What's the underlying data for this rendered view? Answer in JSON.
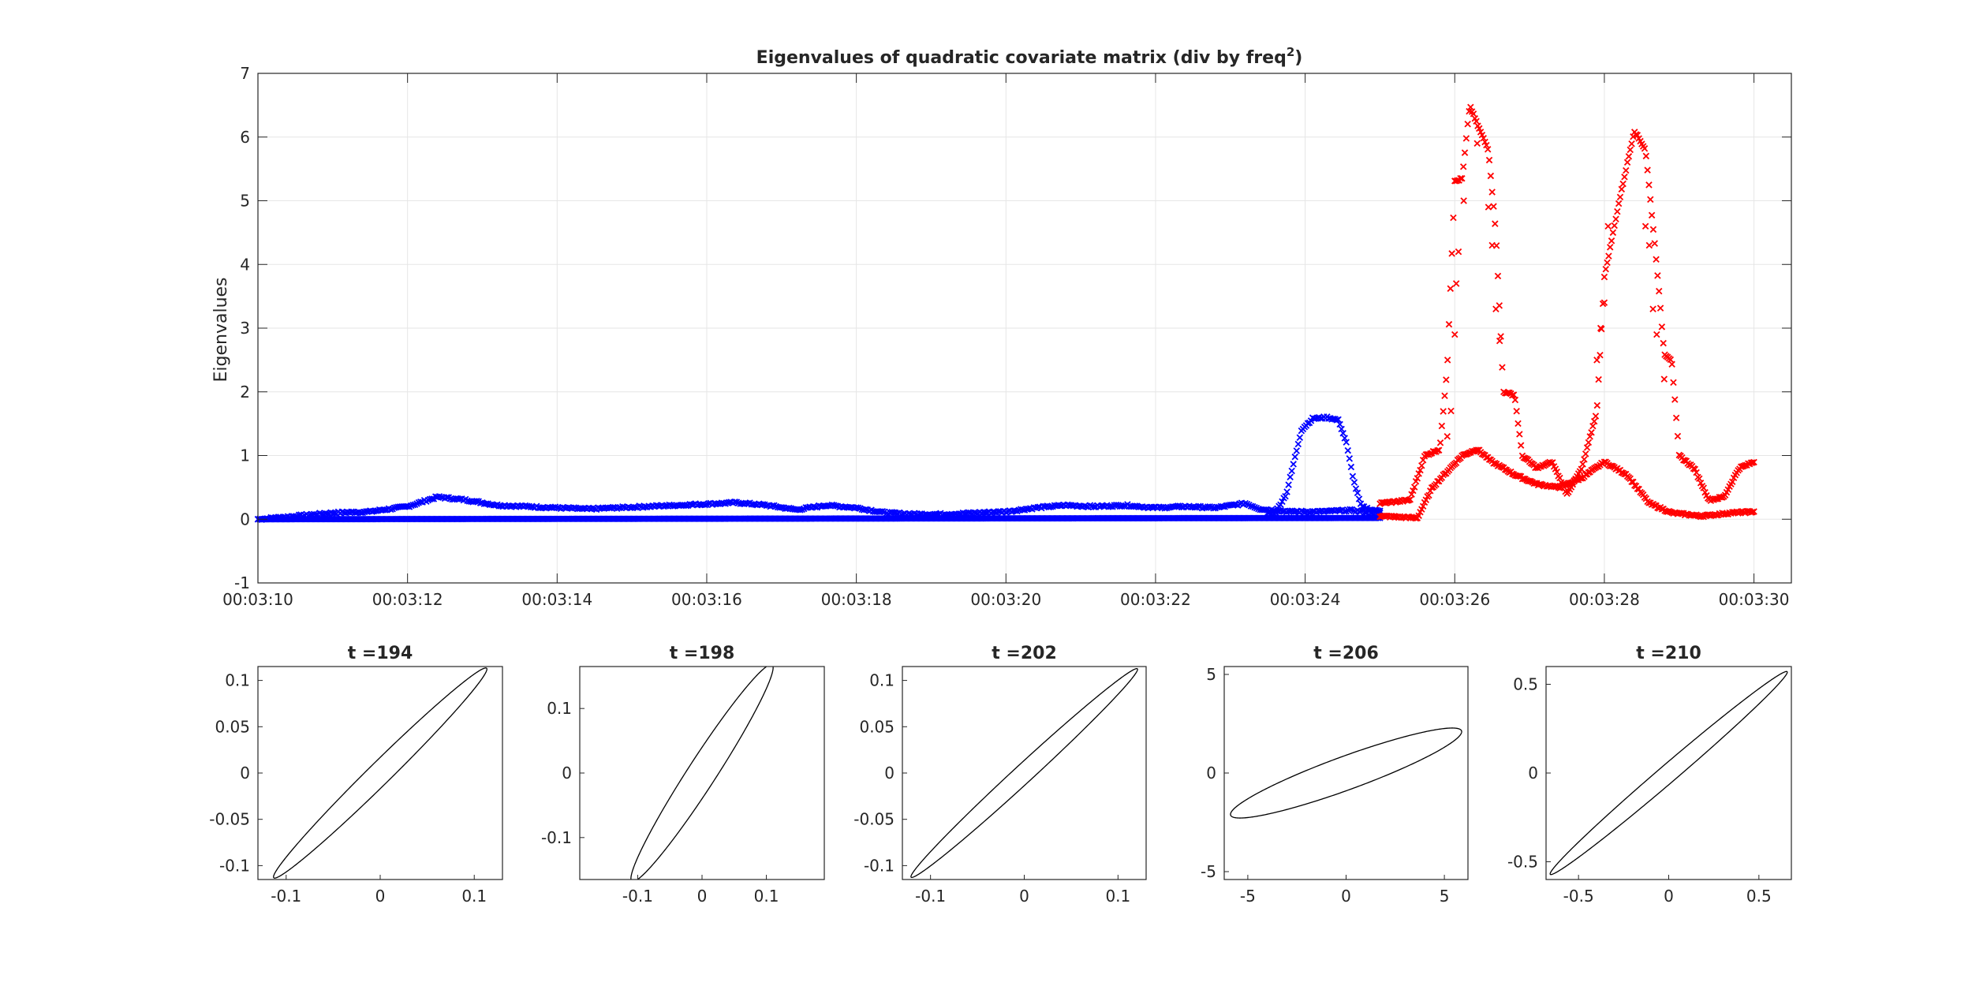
{
  "chart_data": [
    {
      "type": "scatter",
      "title": "Eigenvalues of quadratic covariate matrix (div by freq",
      "title_superscript": "2",
      "title_suffix": ")",
      "ylabel": "Eigenvalues",
      "xlabel": "",
      "xlim": [
        190,
        210.5
      ],
      "ylim": [
        -1,
        7
      ],
      "yticks": [
        -1,
        0,
        1,
        2,
        3,
        4,
        5,
        6,
        7
      ],
      "xticks": [
        {
          "value": 190,
          "label": "00:03:10"
        },
        {
          "value": 192,
          "label": "00:03:12"
        },
        {
          "value": 194,
          "label": "00:03:14"
        },
        {
          "value": 196,
          "label": "00:03:16"
        },
        {
          "value": 198,
          "label": "00:03:18"
        },
        {
          "value": 200,
          "label": "00:03:20"
        },
        {
          "value": 202,
          "label": "00:03:22"
        },
        {
          "value": 204,
          "label": "00:03:24"
        },
        {
          "value": 206,
          "label": "00:03:26"
        },
        {
          "value": 208,
          "label": "00:03:28"
        },
        {
          "value": 210,
          "label": "00:03:30"
        }
      ],
      "grid": true,
      "marker": "x",
      "series": [
        {
          "color": "#0000ff",
          "role": "smaller eigenvalue",
          "x_range": [
            190,
            205
          ],
          "points": [
            [
              190,
              0.0
            ],
            [
              205,
              0.02
            ]
          ]
        },
        {
          "color": "#0000ff",
          "role": "larger eigenvalue",
          "x_range": [
            190,
            205
          ],
          "points": [
            [
              190,
              0.0
            ],
            [
              190.5,
              0.05
            ],
            [
              191,
              0.1
            ],
            [
              191.5,
              0.12
            ],
            [
              192,
              0.2
            ],
            [
              192.4,
              0.35
            ],
            [
              192.8,
              0.3
            ],
            [
              193.2,
              0.22
            ],
            [
              193.6,
              0.2
            ],
            [
              194,
              0.18
            ],
            [
              194.4,
              0.16
            ],
            [
              194.8,
              0.18
            ],
            [
              195.2,
              0.2
            ],
            [
              195.6,
              0.22
            ],
            [
              196,
              0.24
            ],
            [
              196.4,
              0.26
            ],
            [
              196.8,
              0.22
            ],
            [
              197.2,
              0.15
            ],
            [
              197.6,
              0.22
            ],
            [
              198,
              0.18
            ],
            [
              198.4,
              0.1
            ],
            [
              198.8,
              0.08
            ],
            [
              199.2,
              0.08
            ],
            [
              199.6,
              0.1
            ],
            [
              200,
              0.12
            ],
            [
              200.4,
              0.18
            ],
            [
              200.8,
              0.22
            ],
            [
              201.2,
              0.2
            ],
            [
              201.6,
              0.22
            ],
            [
              202,
              0.18
            ],
            [
              202.4,
              0.2
            ],
            [
              202.8,
              0.18
            ],
            [
              203.2,
              0.25
            ],
            [
              203.4,
              0.16
            ],
            [
              203.8,
              0.12
            ],
            [
              204.2,
              0.12
            ],
            [
              204.6,
              0.14
            ],
            [
              205,
              0.1
            ]
          ]
        },
        {
          "color": "#0000ff",
          "role": "pulse",
          "x_range": [
            203.5,
            205
          ],
          "points": [
            [
              203.6,
              0.1
            ],
            [
              203.75,
              0.4
            ],
            [
              203.85,
              0.9
            ],
            [
              203.95,
              1.4
            ],
            [
              204.1,
              1.58
            ],
            [
              204.3,
              1.6
            ],
            [
              204.45,
              1.55
            ],
            [
              204.55,
              1.2
            ],
            [
              204.65,
              0.6
            ],
            [
              204.75,
              0.2
            ],
            [
              204.9,
              0.14
            ]
          ]
        },
        {
          "color": "#ff0000",
          "role": "smaller eigenvalue",
          "x_range": [
            205,
            210
          ],
          "points": [
            [
              205,
              0.05
            ],
            [
              205.5,
              0.02
            ],
            [
              205.7,
              0.5
            ],
            [
              206.1,
              1.0
            ],
            [
              206.3,
              1.1
            ],
            [
              206.5,
              0.9
            ],
            [
              206.8,
              0.7
            ],
            [
              207.1,
              0.55
            ],
            [
              207.4,
              0.5
            ],
            [
              207.7,
              0.65
            ],
            [
              208.0,
              0.9
            ],
            [
              208.3,
              0.7
            ],
            [
              208.6,
              0.25
            ],
            [
              208.9,
              0.1
            ],
            [
              209.3,
              0.05
            ],
            [
              209.7,
              0.1
            ],
            [
              210,
              0.12
            ]
          ]
        },
        {
          "color": "#ff0000",
          "role": "larger eigenvalue",
          "x_range": [
            205,
            210
          ],
          "points": [
            [
              205,
              0.25
            ],
            [
              205.4,
              0.3
            ],
            [
              205.6,
              1.0
            ],
            [
              205.8,
              1.1
            ],
            [
              205.9,
              2.4
            ],
            [
              206.0,
              5.3
            ],
            [
              206.1,
              5.35
            ],
            [
              206.2,
              6.5
            ],
            [
              206.3,
              6.2
            ],
            [
              206.45,
              5.8
            ],
            [
              206.55,
              4.5
            ],
            [
              206.65,
              2.0
            ],
            [
              206.8,
              1.95
            ],
            [
              206.9,
              1.0
            ],
            [
              207.1,
              0.8
            ],
            [
              207.3,
              0.9
            ],
            [
              207.5,
              0.4
            ],
            [
              207.7,
              0.8
            ],
            [
              207.9,
              1.7
            ],
            [
              208.0,
              3.8
            ],
            [
              208.2,
              5.0
            ],
            [
              208.4,
              6.1
            ],
            [
              208.55,
              5.8
            ],
            [
              208.7,
              4.0
            ],
            [
              208.8,
              2.6
            ],
            [
              208.9,
              2.5
            ],
            [
              209.0,
              1.0
            ],
            [
              209.2,
              0.8
            ],
            [
              209.4,
              0.3
            ],
            [
              209.6,
              0.35
            ],
            [
              209.8,
              0.8
            ],
            [
              210,
              0.9
            ]
          ]
        }
      ]
    },
    {
      "type": "line",
      "shape": "ellipse",
      "title": "t =194",
      "xlim": [
        -0.13,
        0.13
      ],
      "ylim": [
        -0.115,
        0.115
      ],
      "xticks": [
        {
          "value": -0.1,
          "label": "-0.1"
        },
        {
          "value": 0,
          "label": "0"
        },
        {
          "value": 0.1,
          "label": "0.1"
        }
      ],
      "yticks": [
        {
          "value": 0.1,
          "label": "0.1"
        },
        {
          "value": 0.05,
          "label": "0.05"
        },
        {
          "value": 0,
          "label": "0"
        },
        {
          "value": -0.05,
          "label": "-0.05"
        },
        {
          "value": -0.1,
          "label": "-0.1"
        }
      ],
      "ellipse": {
        "cx": 0,
        "cy": 0,
        "semi_major": 0.16,
        "semi_minor": 0.012,
        "angle_deg": 45
      }
    },
    {
      "type": "line",
      "shape": "ellipse",
      "title": "t =198",
      "xlim": [
        -0.19,
        0.19
      ],
      "ylim": [
        -0.165,
        0.165
      ],
      "xticks": [
        {
          "value": -0.1,
          "label": "-0.1"
        },
        {
          "value": 0,
          "label": "0"
        },
        {
          "value": 0.1,
          "label": "0.1"
        }
      ],
      "yticks": [
        {
          "value": 0.1,
          "label": "0.1"
        },
        {
          "value": 0,
          "label": "0"
        },
        {
          "value": -0.1,
          "label": "-0.1"
        }
      ],
      "ellipse": {
        "cx": 0,
        "cy": 0,
        "semi_major": 0.2,
        "semi_minor": 0.022,
        "angle_deg": 57
      }
    },
    {
      "type": "line",
      "shape": "ellipse",
      "title": "t =202",
      "xlim": [
        -0.13,
        0.13
      ],
      "ylim": [
        -0.115,
        0.115
      ],
      "xticks": [
        {
          "value": -0.1,
          "label": "-0.1"
        },
        {
          "value": 0,
          "label": "0"
        },
        {
          "value": 0.1,
          "label": "0.1"
        }
      ],
      "yticks": [
        {
          "value": 0.1,
          "label": "0.1"
        },
        {
          "value": 0.05,
          "label": "0.05"
        },
        {
          "value": 0,
          "label": "0"
        },
        {
          "value": -0.05,
          "label": "-0.05"
        },
        {
          "value": -0.1,
          "label": "-0.1"
        }
      ],
      "ellipse": {
        "cx": 0,
        "cy": 0,
        "semi_major": 0.165,
        "semi_minor": 0.01,
        "angle_deg": 43
      }
    },
    {
      "type": "line",
      "shape": "ellipse",
      "title": "t =206",
      "xlim": [
        -6.2,
        6.2
      ],
      "ylim": [
        -5.4,
        5.4
      ],
      "xticks": [
        {
          "value": -5,
          "label": "-5"
        },
        {
          "value": 0,
          "label": "0"
        },
        {
          "value": 5,
          "label": "5"
        }
      ],
      "yticks": [
        {
          "value": 5,
          "label": "5"
        },
        {
          "value": 0,
          "label": "0"
        },
        {
          "value": -5,
          "label": "-5"
        }
      ],
      "ellipse": {
        "cx": 0,
        "cy": 0,
        "semi_major": 6.25,
        "semi_minor": 0.85,
        "angle_deg": 20
      }
    },
    {
      "type": "line",
      "shape": "ellipse",
      "title": "t =210",
      "xlim": [
        -0.68,
        0.68
      ],
      "ylim": [
        -0.6,
        0.6
      ],
      "xticks": [
        {
          "value": -0.5,
          "label": "-0.5"
        },
        {
          "value": 0,
          "label": "0"
        },
        {
          "value": 0.5,
          "label": "0.5"
        }
      ],
      "yticks": [
        {
          "value": 0.5,
          "label": "0.5"
        },
        {
          "value": 0,
          "label": "0"
        },
        {
          "value": -0.5,
          "label": "-0.5"
        }
      ],
      "ellipse": {
        "cx": 0,
        "cy": 0,
        "semi_major": 0.87,
        "semi_minor": 0.05,
        "angle_deg": 41
      }
    }
  ]
}
